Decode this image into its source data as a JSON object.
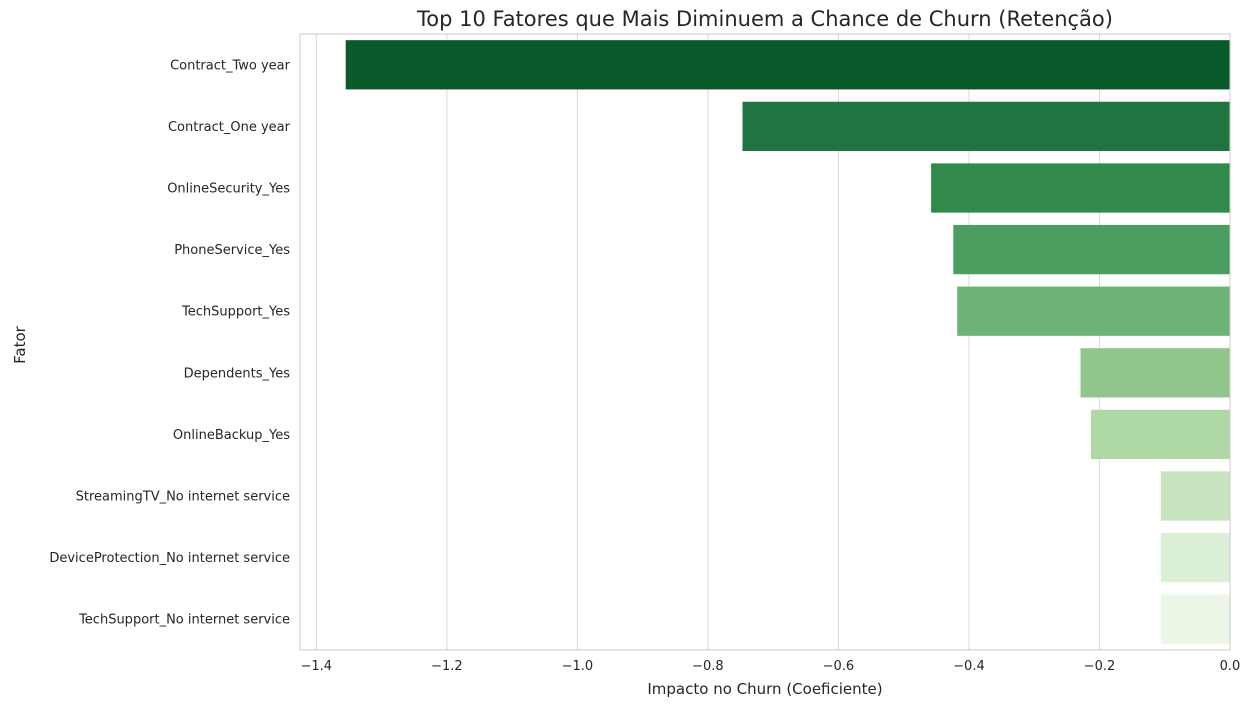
{
  "chart_data": {
    "type": "bar",
    "orientation": "horizontal",
    "title": "Top 10 Fatores que Mais Diminuem a Chance de Churn (Retenção)",
    "xlabel": "Impacto no Churn (Coeficiente)",
    "ylabel": "Fator",
    "xlim": [
      -1.425,
      0.0
    ],
    "xticks": [
      -1.4,
      -1.2,
      -1.0,
      -0.8,
      -0.6,
      -0.4,
      -0.2,
      0.0
    ],
    "xtick_labels": [
      "−1.4",
      "−1.2",
      "−1.0",
      "−0.8",
      "−0.6",
      "−0.4",
      "−0.2",
      "0.0"
    ],
    "grid": true,
    "categories": [
      "Contract_Two year",
      "Contract_One year",
      "OnlineSecurity_Yes",
      "PhoneService_Yes",
      "TechSupport_Yes",
      "Dependents_Yes",
      "OnlineBackup_Yes",
      "StreamingTV_No internet service",
      "DeviceProtection_No internet service",
      "TechSupport_No internet service"
    ],
    "values": [
      -1.355,
      -0.747,
      -0.458,
      -0.424,
      -0.418,
      -0.229,
      -0.213,
      -0.106,
      -0.106,
      -0.106
    ],
    "colors": [
      "#0b5a2b",
      "#1f7440",
      "#31894c",
      "#4a9e5f",
      "#6db276",
      "#90c68c",
      "#aed8a5",
      "#c8e5c0",
      "#dbeed6",
      "#ebf6e7"
    ]
  }
}
